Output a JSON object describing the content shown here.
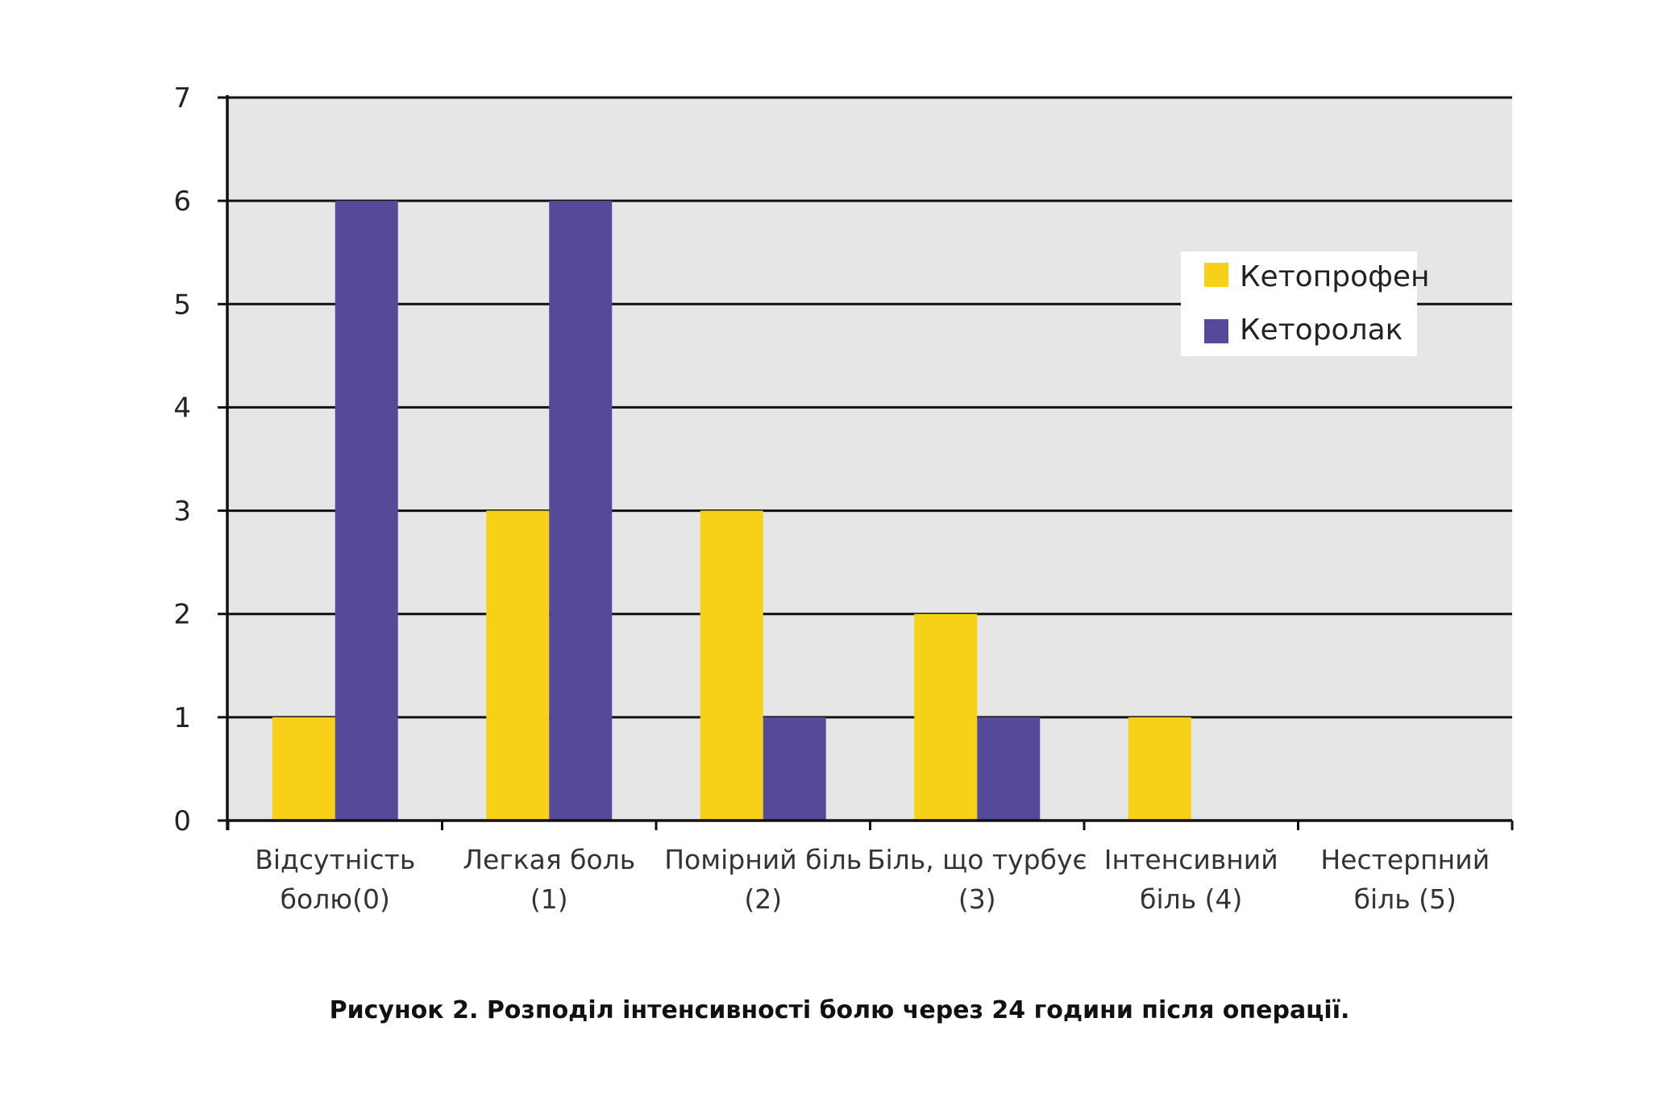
{
  "chart_data": {
    "type": "bar",
    "title": "",
    "xlabel": "",
    "ylabel": "",
    "ylim": [
      0,
      7
    ],
    "yticks": [
      "0",
      "1",
      "2",
      "3",
      "4",
      "5",
      "6",
      "7"
    ],
    "grid": "horizontal",
    "legend_position": "top-right",
    "categories": [
      [
        "Відсутність",
        "болю(0)"
      ],
      [
        "Легкая боль",
        "(1)"
      ],
      [
        "Помірний біль",
        "(2)"
      ],
      [
        "Біль, що турбує",
        "(3)"
      ],
      [
        "Інтенсивний",
        "біль (4)"
      ],
      [
        "Нестерпний",
        "біль (5)"
      ]
    ],
    "series": [
      {
        "name": "Кетопрофен",
        "color": "#F7D117",
        "values": [
          1,
          3,
          3,
          2,
          1,
          0
        ]
      },
      {
        "name": "Кеторолак",
        "color": "#554A99",
        "values": [
          6,
          6,
          1,
          1,
          0,
          0
        ]
      }
    ],
    "colors": {
      "plot_background": "#E6E6E6",
      "gridline": "#111111",
      "axis": "#111111"
    }
  },
  "caption": "Рисунок 2. Розподіл інтенсивності болю через 24 години після операції."
}
